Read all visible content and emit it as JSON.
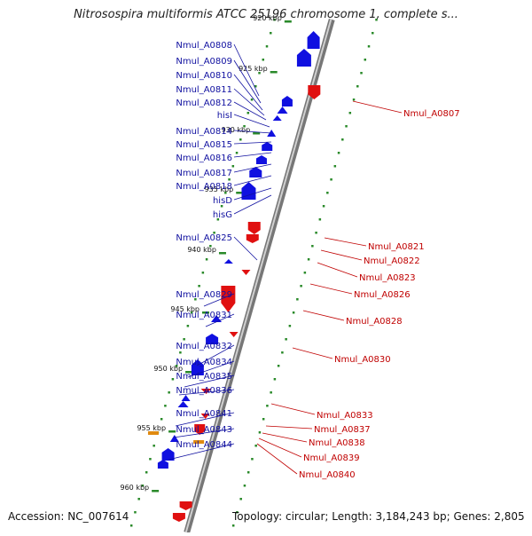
{
  "title": "Nitrosospira multiformis ATCC 25196 chromosome 1, complete s...",
  "accession": "Accession: NC_007614",
  "topology": "Topology: circular; Length: 3,184,243 bp; Genes: 2,805",
  "scale_labels": [
    "920 kbp",
    "925 kbp",
    "930 kbp",
    "935 kbp",
    "940 kbp",
    "945 kbp",
    "950 kbp",
    "955 kbp",
    "960 kbp"
  ],
  "left_genes": [
    "Nmul_A0808",
    "Nmul_A0809",
    "Nmul_A0810",
    "Nmul_A0811",
    "Nmul_A0812",
    "hisI",
    "Nmul_A0814",
    "Nmul_A0815",
    "Nmul_A0816",
    "Nmul_A0817",
    "Nmul_A0818",
    "hisD",
    "hisG",
    "Nmul_A0825",
    "Nmul_A0829",
    "Nmul_A0831",
    "Nmul_A0832",
    "Nmul_A0834",
    "Nmul_A0835",
    "Nmul_A0836",
    "Nmul_A0841",
    "Nmul_A0843",
    "Nmul_A0844"
  ],
  "right_genes": [
    "Nmul_A0807",
    "Nmul_A0821",
    "Nmul_A0822",
    "Nmul_A0823",
    "Nmul_A0826",
    "Nmul_A0828",
    "Nmul_A0830",
    "Nmul_A0833",
    "Nmul_A0837",
    "Nmul_A0838",
    "Nmul_A0839",
    "Nmul_A0840"
  ],
  "colors": {
    "forward": "#1010e0",
    "reverse": "#e01010",
    "backbone": "#999999",
    "label_left": "#1010a0",
    "label_right": "#c00000",
    "dots": "#2a8a2a"
  }
}
